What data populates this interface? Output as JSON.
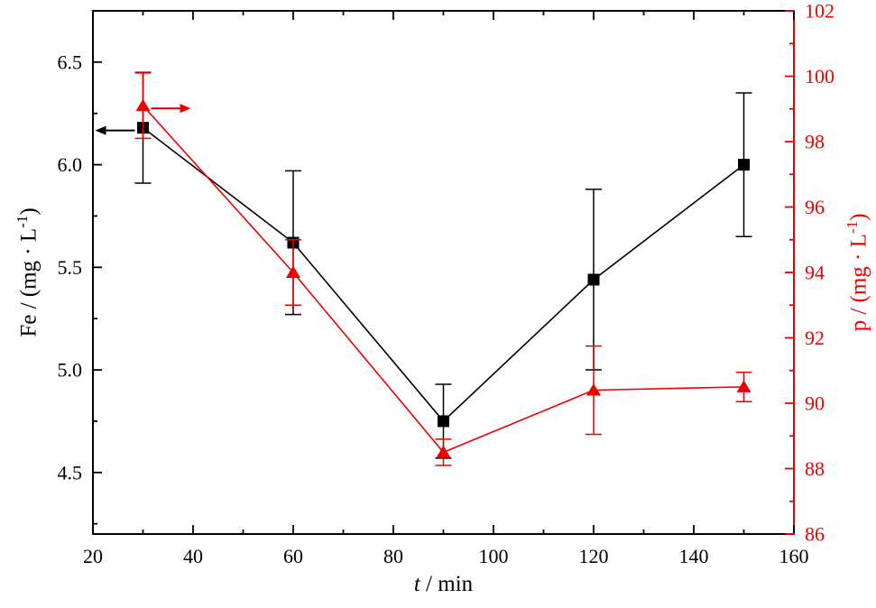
{
  "chart_data": {
    "type": "line",
    "x": [
      30,
      60,
      90,
      120,
      150
    ],
    "xlim": [
      20,
      160
    ],
    "grid": false,
    "legend": null,
    "x_axis": {
      "label": {
        "italic": "t",
        "rest": " / min"
      },
      "tick_values": [
        20,
        40,
        60,
        80,
        100,
        120,
        140,
        160
      ],
      "tick_labels": [
        "20",
        "40",
        "60",
        "80",
        "100",
        "120",
        "140",
        "160"
      ],
      "minor_tick_values": [
        30,
        50,
        70,
        90,
        110,
        130,
        150
      ]
    },
    "left_axis": {
      "label": {
        "pre": "Fe / (mg · L",
        "sup": "-1",
        "post": ")"
      },
      "color": "#000000",
      "ylim": [
        4.2,
        6.75
      ],
      "tick_values": [
        4.5,
        5.0,
        5.5,
        6.0,
        6.5
      ],
      "tick_labels": [
        "4.5",
        "5.0",
        "5.5",
        "6.0",
        "6.5"
      ],
      "minor_tick_values": [
        4.25,
        4.75,
        5.25,
        5.75,
        6.25
      ]
    },
    "right_axis": {
      "label": {
        "pre": "p / (mg · L",
        "sup": "-1",
        "post": ")"
      },
      "color": "#ee0000",
      "ylim": [
        86,
        102
      ],
      "tick_values": [
        86,
        88,
        90,
        92,
        94,
        96,
        98,
        100,
        102
      ],
      "tick_labels": [
        "86",
        "88",
        "90",
        "92",
        "94",
        "96",
        "98",
        "100",
        "102"
      ],
      "minor_tick_values": [
        87,
        89,
        91,
        93,
        95,
        97,
        99,
        101
      ]
    },
    "series": [
      {
        "name": "Fe",
        "axis": "left",
        "color": "#000000",
        "marker": "square",
        "values": [
          6.18,
          5.62,
          4.75,
          5.44,
          6.0
        ],
        "errors": [
          0.27,
          0.35,
          0.18,
          0.44,
          0.35
        ],
        "axis_arrow": "left"
      },
      {
        "name": "p",
        "axis": "right",
        "color": "#ee0000",
        "marker": "triangle-up",
        "values": [
          99.1,
          94.0,
          88.5,
          90.4,
          90.5
        ],
        "errors": [
          1.0,
          1.0,
          0.4,
          1.35,
          0.45
        ],
        "axis_arrow": "right"
      }
    ]
  }
}
